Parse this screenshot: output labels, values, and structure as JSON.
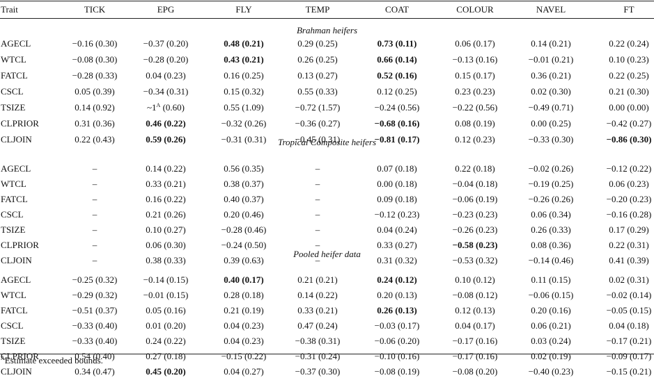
{
  "header": [
    "Trait",
    "TICK",
    "EPG",
    "FLY",
    "TEMP",
    "COAT",
    "COLOUR",
    "NAVEL",
    "FT"
  ],
  "sections": [
    {
      "title": "Brahman heifers",
      "rows": [
        {
          "trait": "AGECL",
          "cells": [
            {
              "v": "−0.16 (0.30)"
            },
            {
              "v": "−0.37 (0.20)"
            },
            {
              "v": "0.48 (0.21)",
              "b": true
            },
            {
              "v": "0.29 (0.25)"
            },
            {
              "v": "0.73 (0.11)",
              "b": true
            },
            {
              "v": "0.06 (0.17)"
            },
            {
              "v": "0.14 (0.21)"
            },
            {
              "v": "0.22 (0.24)"
            }
          ]
        },
        {
          "trait": "WTCL",
          "cells": [
            {
              "v": "−0.08 (0.30)"
            },
            {
              "v": "−0.28 (0.20)"
            },
            {
              "v": "0.43 (0.21)",
              "b": true
            },
            {
              "v": "0.26 (0.25)"
            },
            {
              "v": "0.66 (0.14)",
              "b": true
            },
            {
              "v": "−0.13 (0.16)"
            },
            {
              "v": "−0.01 (0.21)"
            },
            {
              "v": "0.10 (0.23)"
            }
          ]
        },
        {
          "trait": "FATCL",
          "cells": [
            {
              "v": "−0.28 (0.33)"
            },
            {
              "v": "0.04 (0.23)"
            },
            {
              "v": "0.16 (0.25)"
            },
            {
              "v": "0.13 (0.27)"
            },
            {
              "v": "0.52 (0.16)",
              "b": true
            },
            {
              "v": "0.15 (0.17)"
            },
            {
              "v": "0.36 (0.21)"
            },
            {
              "v": "0.22 (0.25)"
            }
          ]
        },
        {
          "trait": "CSCL",
          "cells": [
            {
              "v": "0.05 (0.39)"
            },
            {
              "v": "−0.34 (0.31)"
            },
            {
              "v": "0.15 (0.32)"
            },
            {
              "v": "0.55 (0.33)"
            },
            {
              "v": "0.12 (0.25)"
            },
            {
              "v": "0.23 (0.23)"
            },
            {
              "v": "0.02 (0.30)"
            },
            {
              "v": "0.21 (0.30)"
            }
          ]
        },
        {
          "trait": "TSIZE",
          "cells": [
            {
              "v": "0.14 (0.92)"
            },
            {
              "v": "~1",
              "sup": "A",
              "v2": " (0.60)"
            },
            {
              "v": "0.55 (1.09)"
            },
            {
              "v": "−0.72 (1.57)"
            },
            {
              "v": "−0.24 (0.56)"
            },
            {
              "v": "−0.22 (0.56)"
            },
            {
              "v": "−0.49 (0.71)"
            },
            {
              "v": "0.00 (0.00)"
            }
          ]
        },
        {
          "trait": "CLPRIOR",
          "cells": [
            {
              "v": "0.31 (0.36)"
            },
            {
              "v": "0.46 (0.22)",
              "b": true
            },
            {
              "v": "−0.32 (0.26)"
            },
            {
              "v": "−0.36 (0.27)"
            },
            {
              "v": "−0.68 (0.16)",
              "b": true
            },
            {
              "v": "0.08 (0.19)"
            },
            {
              "v": "0.00 (0.25)"
            },
            {
              "v": "−0.42 (0.27)"
            }
          ]
        },
        {
          "trait": "CLJOIN",
          "cells": [
            {
              "v": "0.22 (0.43)"
            },
            {
              "v": "0.59 (0.26)",
              "b": true
            },
            {
              "v": "−0.31 (0.31)"
            },
            {
              "v": "−0.45 (0.31)"
            },
            {
              "v": "−0.81 (0.17)",
              "b": true
            },
            {
              "v": "0.12 (0.23)"
            },
            {
              "v": "−0.33 (0.30)"
            },
            {
              "v": "−0.86 (0.30)",
              "b": true
            }
          ]
        }
      ]
    },
    {
      "title": "Tropical Composite heifers",
      "rows": [
        {
          "trait": "AGECL",
          "cells": [
            {
              "v": "–"
            },
            {
              "v": "0.14 (0.22)"
            },
            {
              "v": "0.56 (0.35)"
            },
            {
              "v": "–"
            },
            {
              "v": "0.07 (0.18)"
            },
            {
              "v": "0.22 (0.18)"
            },
            {
              "v": "−0.02 (0.26)"
            },
            {
              "v": "−0.12 (0.22)"
            }
          ]
        },
        {
          "trait": "WTCL",
          "cells": [
            {
              "v": "–"
            },
            {
              "v": "0.33 (0.21)"
            },
            {
              "v": "0.38 (0.37)"
            },
            {
              "v": "–"
            },
            {
              "v": "0.00 (0.18)"
            },
            {
              "v": "−0.04 (0.18)"
            },
            {
              "v": "−0.19 (0.25)"
            },
            {
              "v": "0.06 (0.23)"
            }
          ]
        },
        {
          "trait": "FATCL",
          "cells": [
            {
              "v": "–"
            },
            {
              "v": "0.16 (0.22)"
            },
            {
              "v": "0.40 (0.37)"
            },
            {
              "v": "–"
            },
            {
              "v": "0.09 (0.18)"
            },
            {
              "v": "−0.06 (0.19)"
            },
            {
              "v": "−0.26 (0.26)"
            },
            {
              "v": "−0.20 (0.23)"
            }
          ]
        },
        {
          "trait": "CSCL",
          "cells": [
            {
              "v": "–"
            },
            {
              "v": "0.21 (0.26)"
            },
            {
              "v": "0.20 (0.46)"
            },
            {
              "v": "–"
            },
            {
              "v": "−0.12 (0.23)"
            },
            {
              "v": "−0.23 (0.23)"
            },
            {
              "v": "0.06 (0.34)"
            },
            {
              "v": "−0.16 (0.28)"
            }
          ]
        },
        {
          "trait": "TSIZE",
          "cells": [
            {
              "v": "–"
            },
            {
              "v": "0.10 (0.27)"
            },
            {
              "v": "−0.28 (0.46)"
            },
            {
              "v": "–"
            },
            {
              "v": "0.04 (0.24)"
            },
            {
              "v": "−0.26 (0.23)"
            },
            {
              "v": "0.26 (0.33)"
            },
            {
              "v": "0.17 (0.29)"
            }
          ]
        },
        {
          "trait": "CLPRIOR",
          "cells": [
            {
              "v": "–"
            },
            {
              "v": "0.06 (0.30)"
            },
            {
              "v": "−0.24 (0.50)"
            },
            {
              "v": "–"
            },
            {
              "v": "0.33 (0.27)"
            },
            {
              "v": "−0.58 (0.23)",
              "b": true
            },
            {
              "v": "0.08 (0.36)"
            },
            {
              "v": "0.22 (0.31)"
            }
          ]
        },
        {
          "trait": "CLJOIN",
          "cells": [
            {
              "v": "–"
            },
            {
              "v": "0.38 (0.33)"
            },
            {
              "v": "0.39 (0.63)"
            },
            {
              "v": "–"
            },
            {
              "v": "0.31 (0.32)"
            },
            {
              "v": "−0.53 (0.32)"
            },
            {
              "v": "−0.14 (0.46)"
            },
            {
              "v": "0.41 (0.39)"
            }
          ]
        }
      ]
    },
    {
      "title": "Pooled heifer data",
      "rows": [
        {
          "trait": "AGECL",
          "cells": [
            {
              "v": "−0.25 (0.32)"
            },
            {
              "v": "−0.14 (0.15)"
            },
            {
              "v": "0.40 (0.17)",
              "b": true
            },
            {
              "v": "0.21 (0.21)"
            },
            {
              "v": "0.24 (0.12)",
              "b": true
            },
            {
              "v": "0.10 (0.12)"
            },
            {
              "v": "0.11 (0.15)"
            },
            {
              "v": "0.02 (0.31)"
            }
          ]
        },
        {
          "trait": "WTCL",
          "cells": [
            {
              "v": "−0.29 (0.32)"
            },
            {
              "v": "−0.01 (0.15)"
            },
            {
              "v": "0.28 (0.18)"
            },
            {
              "v": "0.14 (0.22)"
            },
            {
              "v": "0.20 (0.13)"
            },
            {
              "v": "−0.08 (0.12)"
            },
            {
              "v": "−0.06 (0.15)"
            },
            {
              "v": "−0.02 (0.14)"
            }
          ]
        },
        {
          "trait": "FATCL",
          "cells": [
            {
              "v": "−0.51 (0.37)"
            },
            {
              "v": "0.05 (0.16)"
            },
            {
              "v": "0.21 (0.19)"
            },
            {
              "v": "0.33 (0.21)"
            },
            {
              "v": "0.26 (0.13)",
              "b": true
            },
            {
              "v": "0.12 (0.13)"
            },
            {
              "v": "0.20 (0.16)"
            },
            {
              "v": "−0.05 (0.15)"
            }
          ]
        },
        {
          "trait": "CSCL",
          "cells": [
            {
              "v": "−0.33 (0.40)"
            },
            {
              "v": "0.01 (0.20)"
            },
            {
              "v": "0.04 (0.23)"
            },
            {
              "v": "0.47 (0.24)"
            },
            {
              "v": "−0.03 (0.17)"
            },
            {
              "v": "0.04 (0.17)"
            },
            {
              "v": "0.06 (0.21)"
            },
            {
              "v": "0.04 (0.18)"
            }
          ]
        },
        {
          "trait": "TSIZE",
          "cells": [
            {
              "v": "−0.33 (0.40)"
            },
            {
              "v": "0.24 (0.22)"
            },
            {
              "v": "0.04 (0.23)"
            },
            {
              "v": "−0.38 (0.31)"
            },
            {
              "v": "−0.06 (0.20)"
            },
            {
              "v": "−0.17 (0.16)"
            },
            {
              "v": "0.03 (0.24)"
            },
            {
              "v": "−0.17 (0.21)"
            }
          ]
        },
        {
          "trait": "CLPRIOR",
          "cells": [
            {
              "v": "0.54 (0.40)"
            },
            {
              "v": "0.27 (0.18)"
            },
            {
              "v": "−0.15 (0.22)"
            },
            {
              "v": "−0.31 (0.24)"
            },
            {
              "v": "−0.10 (0.16)"
            },
            {
              "v": "−0.17 (0.16)"
            },
            {
              "v": "0.02 (0.19)"
            },
            {
              "v": "−0.09 (0.17)"
            }
          ]
        },
        {
          "trait": "CLJOIN",
          "cells": [
            {
              "v": "0.34 (0.47)"
            },
            {
              "v": "0.45 (0.20)",
              "b": true
            },
            {
              "v": "0.04 (0.27)"
            },
            {
              "v": "−0.37 (0.30)"
            },
            {
              "v": "−0.08 (0.19)"
            },
            {
              "v": "−0.08 (0.20)"
            },
            {
              "v": "−0.40 (0.23)"
            },
            {
              "v": "−0.15 (0.21)"
            }
          ]
        }
      ]
    }
  ],
  "footnote": {
    "sup": "A",
    "text": "Estimate exceeded bounds."
  }
}
